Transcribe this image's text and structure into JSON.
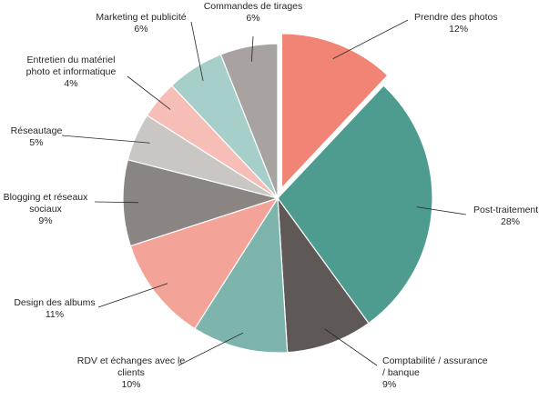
{
  "chart_data": {
    "type": "pie",
    "title": "",
    "start_angle_deg": 0,
    "direction": "clockwise",
    "exploded_index": 0,
    "slices": [
      {
        "label": [
          "Prendre des photos"
        ],
        "pct_label": "12%",
        "value": 12,
        "color": "#F28476"
      },
      {
        "label": [
          "Post-traitement"
        ],
        "pct_label": "28%",
        "value": 28,
        "color": "#4E9C90"
      },
      {
        "label": [
          "Comptabilité / assurance",
          "/ banque"
        ],
        "pct_label": "9%",
        "value": 9,
        "color": "#5E5856"
      },
      {
        "label": [
          "RDV et échanges avec le",
          "clients"
        ],
        "pct_label": "10%",
        "value": 10,
        "color": "#7DB5AD"
      },
      {
        "label": [
          "Design des albums"
        ],
        "pct_label": "11%",
        "value": 11,
        "color": "#F4A398"
      },
      {
        "label": [
          "Blogging et réseaux",
          "sociaux"
        ],
        "pct_label": "9%",
        "value": 9,
        "color": "#8A8482"
      },
      {
        "label": [
          "Réseautage"
        ],
        "pct_label": "5%",
        "value": 5,
        "color": "#C9C6C4"
      },
      {
        "label": [
          "Entretien du matériel",
          "photo et informatique"
        ],
        "pct_label": "4%",
        "value": 4,
        "color": "#F7BEB7"
      },
      {
        "label": [
          "Marketing et publicité"
        ],
        "pct_label": "6%",
        "value": 6,
        "color": "#A7CFC9"
      },
      {
        "label": [
          "Commandes de tirages"
        ],
        "pct_label": "6%",
        "value": 6,
        "color": "#A8A3A1"
      }
    ]
  }
}
